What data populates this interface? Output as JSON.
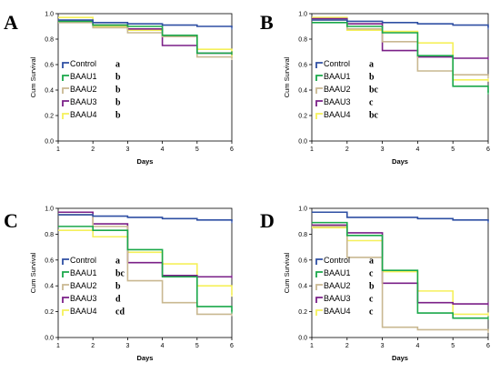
{
  "colors": {
    "Control": "#2e4fa3",
    "BAAU1": "#1aa84a",
    "BAAU2": "#c9b891",
    "BAAU3": "#7a1f87",
    "BAAU4": "#f5f05a"
  },
  "chart_data": [
    {
      "type": "line",
      "step": true,
      "panel_label": "A",
      "xlabel": "Days",
      "ylabel": "Cum Survival",
      "x_ticks": [
        "1",
        "2",
        "3",
        "4",
        "5",
        "6"
      ],
      "y_ticks": [
        "0.0",
        "0.2",
        "0.4",
        "0.6",
        "0.8",
        "1.0"
      ],
      "xlim": [
        1,
        6
      ],
      "ylim": [
        0,
        1
      ],
      "legend_placement": "bottom-left",
      "series": [
        {
          "name": "Control",
          "group": "a",
          "x": [
            1,
            2,
            3,
            4,
            5,
            6
          ],
          "y": [
            0.95,
            0.93,
            0.92,
            0.91,
            0.9,
            0.89
          ]
        },
        {
          "name": "BAAU1",
          "group": "b",
          "x": [
            1,
            2,
            3,
            4,
            5,
            6
          ],
          "y": [
            0.94,
            0.91,
            0.9,
            0.83,
            0.69,
            0.69
          ]
        },
        {
          "name": "BAAU2",
          "group": "b",
          "x": [
            1,
            2,
            3,
            4,
            5,
            6
          ],
          "y": [
            0.93,
            0.89,
            0.85,
            0.82,
            0.66,
            0.65
          ]
        },
        {
          "name": "BAAU3",
          "group": "b",
          "x": [
            1,
            2,
            3,
            4,
            5,
            6
          ],
          "y": [
            0.94,
            0.91,
            0.88,
            0.75,
            0.69,
            0.69
          ]
        },
        {
          "name": "BAAU4",
          "group": "b",
          "x": [
            1,
            2,
            3,
            4,
            5,
            6
          ],
          "y": [
            0.97,
            0.9,
            0.87,
            0.83,
            0.72,
            0.66
          ]
        }
      ]
    },
    {
      "type": "line",
      "step": true,
      "panel_label": "B",
      "xlabel": "Days",
      "ylabel": "Cum Survival",
      "x_ticks": [
        "1",
        "2",
        "3",
        "4",
        "5",
        "6"
      ],
      "y_ticks": [
        "0.0",
        "0.2",
        "0.4",
        "0.6",
        "0.8",
        "1.0"
      ],
      "xlim": [
        1,
        6
      ],
      "ylim": [
        0,
        1
      ],
      "legend_placement": "bottom-left",
      "series": [
        {
          "name": "Control",
          "group": "a",
          "x": [
            1,
            2,
            3,
            4,
            5,
            6
          ],
          "y": [
            0.95,
            0.94,
            0.93,
            0.92,
            0.91,
            0.89
          ]
        },
        {
          "name": "BAAU1",
          "group": "b",
          "x": [
            1,
            2,
            3,
            4,
            5,
            6
          ],
          "y": [
            0.93,
            0.9,
            0.85,
            0.67,
            0.43,
            0.38
          ]
        },
        {
          "name": "BAAU2",
          "group": "bc",
          "x": [
            1,
            2,
            3,
            4,
            5,
            6
          ],
          "y": [
            0.95,
            0.88,
            0.78,
            0.55,
            0.52,
            0.51
          ]
        },
        {
          "name": "BAAU3",
          "group": "c",
          "x": [
            1,
            2,
            3,
            4,
            5,
            6
          ],
          "y": [
            0.96,
            0.92,
            0.71,
            0.66,
            0.65,
            0.65
          ]
        },
        {
          "name": "BAAU4",
          "group": "bc",
          "x": [
            1,
            2,
            3,
            4,
            5,
            6
          ],
          "y": [
            0.97,
            0.87,
            0.86,
            0.77,
            0.48,
            0.48
          ]
        }
      ]
    },
    {
      "type": "line",
      "step": true,
      "panel_label": "C",
      "xlabel": "Days",
      "ylabel": "Cum Survival",
      "x_ticks": [
        "1",
        "2",
        "3",
        "4",
        "5",
        "6"
      ],
      "y_ticks": [
        "0.0",
        "0.2",
        "0.4",
        "0.6",
        "0.8",
        "1.0"
      ],
      "xlim": [
        1,
        6
      ],
      "ylim": [
        0,
        1
      ],
      "legend_placement": "bottom-left",
      "series": [
        {
          "name": "Control",
          "group": "a",
          "x": [
            1,
            2,
            3,
            4,
            5,
            6
          ],
          "y": [
            0.95,
            0.94,
            0.93,
            0.92,
            0.91,
            0.9
          ]
        },
        {
          "name": "BAAU1",
          "group": "bc",
          "x": [
            1,
            2,
            3,
            4,
            5,
            6
          ],
          "y": [
            0.86,
            0.83,
            0.68,
            0.47,
            0.24,
            0.2
          ]
        },
        {
          "name": "BAAU2",
          "group": "b",
          "x": [
            1,
            2,
            3,
            4,
            5,
            6
          ],
          "y": [
            0.95,
            0.86,
            0.44,
            0.27,
            0.18,
            0.18
          ]
        },
        {
          "name": "BAAU3",
          "group": "d",
          "x": [
            1,
            2,
            3,
            4,
            5,
            6
          ],
          "y": [
            0.97,
            0.88,
            0.58,
            0.48,
            0.47,
            0.47
          ]
        },
        {
          "name": "BAAU4",
          "group": "cd",
          "x": [
            1,
            2,
            3,
            4,
            5,
            6
          ],
          "y": [
            0.83,
            0.78,
            0.66,
            0.57,
            0.4,
            0.33
          ]
        }
      ]
    },
    {
      "type": "line",
      "step": true,
      "panel_label": "D",
      "xlabel": "Days",
      "ylabel": "Cum Survival",
      "x_ticks": [
        "1",
        "2",
        "3",
        "4",
        "5",
        "6"
      ],
      "y_ticks": [
        "0.0",
        "0.2",
        "0.4",
        "0.6",
        "0.8",
        "1.0"
      ],
      "xlim": [
        1,
        6
      ],
      "ylim": [
        0,
        1
      ],
      "legend_placement": "bottom-left",
      "series": [
        {
          "name": "Control",
          "group": "a",
          "x": [
            1,
            2,
            3,
            4,
            5,
            6
          ],
          "y": [
            0.97,
            0.93,
            0.93,
            0.92,
            0.91,
            0.9
          ]
        },
        {
          "name": "BAAU1",
          "group": "c",
          "x": [
            1,
            2,
            3,
            4,
            5,
            6
          ],
          "y": [
            0.89,
            0.79,
            0.52,
            0.19,
            0.15,
            0.15
          ]
        },
        {
          "name": "BAAU2",
          "group": "b",
          "x": [
            1,
            2,
            3,
            4,
            5,
            6
          ],
          "y": [
            0.86,
            0.62,
            0.08,
            0.06,
            0.06,
            0.05
          ]
        },
        {
          "name": "BAAU3",
          "group": "c",
          "x": [
            1,
            2,
            3,
            4,
            5,
            6
          ],
          "y": [
            0.87,
            0.81,
            0.42,
            0.27,
            0.26,
            0.26
          ]
        },
        {
          "name": "BAAU4",
          "group": "c",
          "x": [
            1,
            2,
            3,
            4,
            5,
            6
          ],
          "y": [
            0.85,
            0.75,
            0.51,
            0.36,
            0.18,
            0.18
          ]
        }
      ]
    }
  ]
}
